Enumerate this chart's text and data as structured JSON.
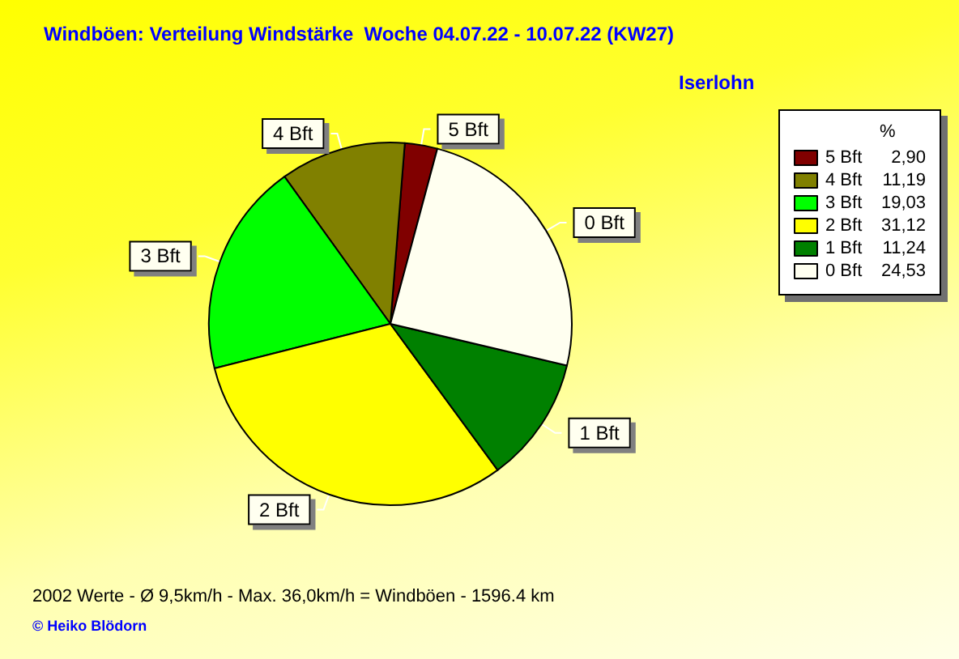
{
  "chart_data": {
    "type": "pie",
    "title": "Windböen: Verteilung Windstärke  Woche 04.07.22 - 10.07.22 (KW27)",
    "subtitle": "Iserlohn",
    "categories": [
      "5 Bft",
      "4 Bft",
      "3 Bft",
      "2 Bft",
      "1 Bft",
      "0 Bft"
    ],
    "values": [
      2.9,
      11.19,
      19.03,
      31.12,
      11.24,
      24.53
    ],
    "value_labels": [
      "2,90",
      "11,19",
      "19,03",
      "31,12",
      "11,24",
      "24,53"
    ],
    "colors": [
      "#800000",
      "#808000",
      "#00ff00",
      "#ffff00",
      "#008000",
      "#fffff0"
    ],
    "legend": "top right",
    "legend_title": "%",
    "annotations": [
      "2002 Werte - Ø 9,5km/h - Max. 36,0km/h = Windböen - 1596.4 km",
      "© Heiko Blödorn"
    ]
  }
}
